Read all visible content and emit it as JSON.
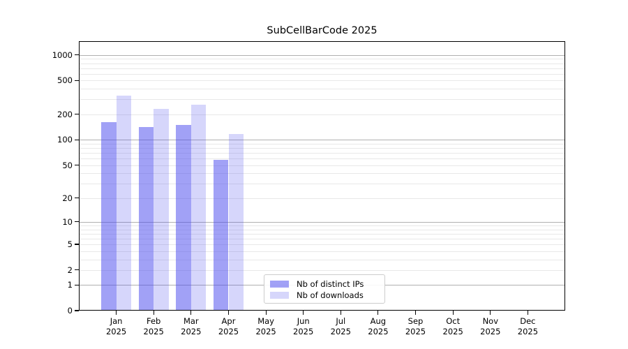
{
  "title": "SubCellBarCode 2025",
  "chart_data": {
    "type": "bar",
    "title": "SubCellBarCode 2025",
    "categories": [
      "Jan",
      "Feb",
      "Mar",
      "Apr",
      "May",
      "Jun",
      "Jul",
      "Aug",
      "Sep",
      "Oct",
      "Nov",
      "Dec"
    ],
    "x_year_label": "2025",
    "series": [
      {
        "name": "Nb of distinct IPs",
        "color": "rgba(68,68,238,0.50)",
        "values": [
          163,
          141,
          151,
          58,
          0,
          0,
          0,
          0,
          0,
          0,
          0,
          0
        ]
      },
      {
        "name": "Nb of downloads",
        "color": "rgba(68,68,238,0.22)",
        "values": [
          335,
          230,
          262,
          118,
          0,
          0,
          0,
          0,
          0,
          0,
          0,
          0
        ]
      }
    ],
    "y_ticks": [
      0,
      1,
      2,
      5,
      10,
      20,
      50,
      100,
      200,
      500,
      1000
    ],
    "y_scale": "log10(1+v)",
    "ylim": [
      0,
      1450
    ],
    "xlabel": "",
    "ylabel": "",
    "legend_position": "lower-center",
    "grid": {
      "horizontal": true,
      "major_color": "#b0b0b0",
      "minor_color": "#e8e8e8"
    },
    "colors": {
      "bar_base": "#4444ee",
      "spine": "#000000",
      "background": "#ffffff"
    }
  }
}
